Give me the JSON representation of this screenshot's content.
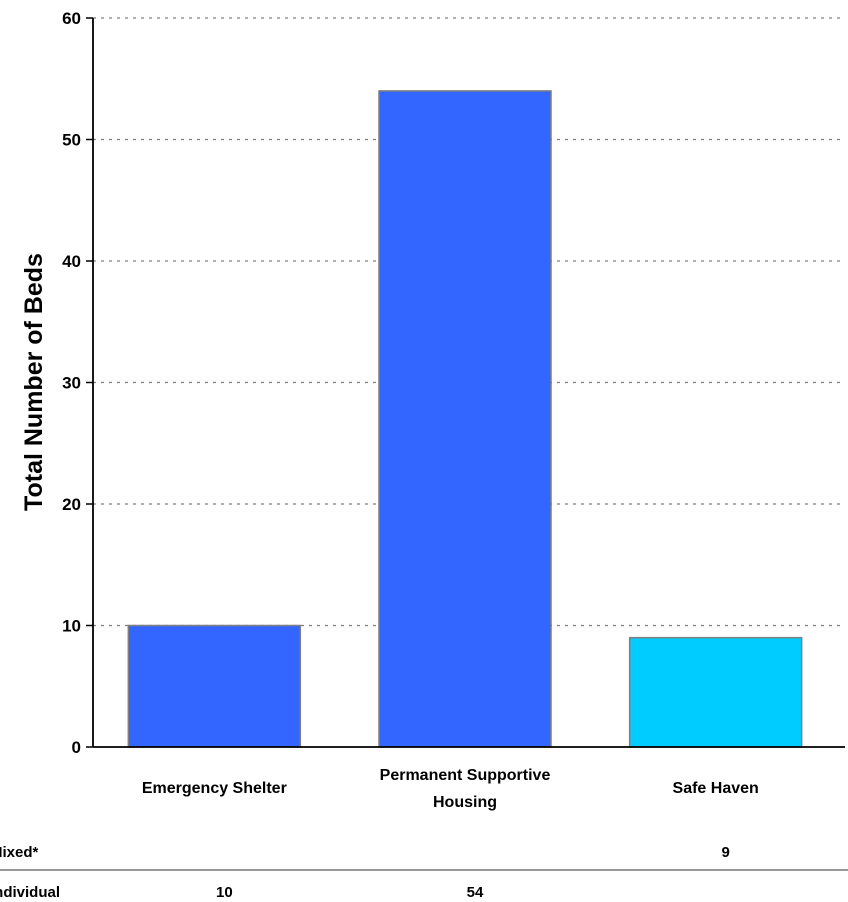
{
  "chart_data": {
    "type": "bar",
    "title": "",
    "xlabel": "",
    "ylabel": "Total Number of Beds",
    "ylim": [
      0,
      60
    ],
    "yticks": [
      "0",
      "10",
      "20",
      "30",
      "40",
      "50",
      "60"
    ],
    "grid": true,
    "categories": [
      [
        "Emergency Shelter"
      ],
      [
        "Permanent Supportive",
        "Housing"
      ],
      [
        "Safe Haven"
      ]
    ],
    "series": [
      {
        "name": "Individual",
        "values": [
          10,
          54,
          null
        ],
        "color": "#3366FF"
      },
      {
        "name": "Mixed*",
        "values": [
          null,
          null,
          9
        ],
        "color": "#00CCFF"
      }
    ]
  },
  "data_table": {
    "rows": [
      {
        "label": "Mixed*",
        "values": [
          "",
          "",
          "9"
        ]
      },
      {
        "label": "Individual",
        "values": [
          "10",
          "54",
          ""
        ]
      }
    ]
  }
}
